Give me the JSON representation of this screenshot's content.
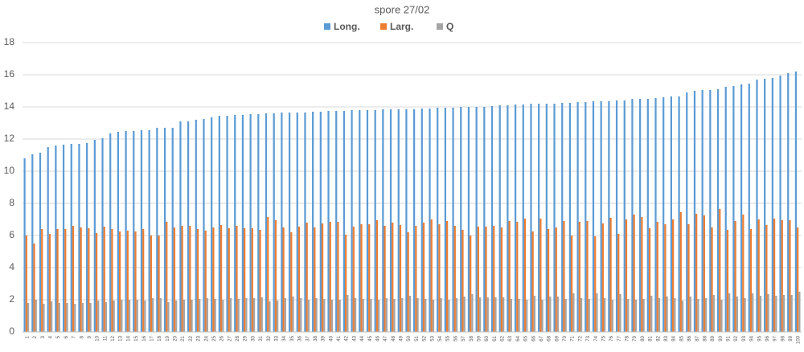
{
  "chart_data": {
    "type": "bar",
    "title": "spore 27/02",
    "categories": [
      "1",
      "2",
      "3",
      "4",
      "5",
      "6",
      "7",
      "8",
      "9",
      "10",
      "11",
      "12",
      "13",
      "14",
      "15",
      "16",
      "17",
      "18",
      "19",
      "20",
      "21",
      "22",
      "23",
      "24",
      "25",
      "26",
      "27",
      "28",
      "29",
      "30",
      "31",
      "32",
      "33",
      "34",
      "35",
      "36",
      "37",
      "38",
      "39",
      "40",
      "41",
      "42",
      "43",
      "44",
      "45",
      "46",
      "47",
      "48",
      "49",
      "50",
      "51",
      "52",
      "53",
      "54",
      "55",
      "56",
      "57",
      "58",
      "59",
      "60",
      "61",
      "62",
      "63",
      "64",
      "65",
      "66",
      "67",
      "68",
      "69",
      "70",
      "71",
      "72",
      "73",
      "74",
      "75",
      "76",
      "77",
      "78",
      "79",
      "80",
      "81",
      "82",
      "83",
      "84",
      "85",
      "86",
      "87",
      "88",
      "89",
      "90",
      "91",
      "92",
      "93",
      "94",
      "95",
      "96",
      "97",
      "98",
      "99",
      "100"
    ],
    "series": [
      {
        "name": "Long.",
        "color": "#5b9bd5",
        "values": [
          10.8,
          11.05,
          11.15,
          11.5,
          11.6,
          11.65,
          11.7,
          11.7,
          11.75,
          11.95,
          12.05,
          12.35,
          12.45,
          12.5,
          12.5,
          12.55,
          12.55,
          12.7,
          12.7,
          12.7,
          13.1,
          13.1,
          13.2,
          13.25,
          13.35,
          13.45,
          13.45,
          13.5,
          13.5,
          13.55,
          13.55,
          13.6,
          13.6,
          13.65,
          13.65,
          13.65,
          13.65,
          13.7,
          13.7,
          13.75,
          13.75,
          13.75,
          13.8,
          13.8,
          13.8,
          13.8,
          13.85,
          13.85,
          13.85,
          13.85,
          13.85,
          13.9,
          13.9,
          13.95,
          13.95,
          13.95,
          14,
          14,
          14,
          14,
          14.05,
          14.1,
          14.1,
          14.15,
          14.15,
          14.2,
          14.2,
          14.2,
          14.2,
          14.25,
          14.25,
          14.3,
          14.3,
          14.35,
          14.35,
          14.35,
          14.4,
          14.4,
          14.5,
          14.5,
          14.5,
          14.55,
          14.6,
          14.65,
          14.65,
          14.9,
          15,
          15.05,
          15.05,
          15.1,
          15.25,
          15.3,
          15.4,
          15.45,
          15.7,
          15.75,
          15.8,
          15.95,
          16.1,
          16.2
        ]
      },
      {
        "name": "Larg.",
        "color": "#ed7d31",
        "values": [
          6.0,
          5.5,
          6.4,
          6.1,
          6.4,
          6.4,
          6.6,
          6.5,
          6.45,
          6.15,
          6.55,
          6.4,
          6.25,
          6.3,
          6.25,
          6.4,
          6.0,
          6.0,
          6.85,
          6.5,
          6.6,
          6.6,
          6.4,
          6.3,
          6.5,
          6.65,
          6.45,
          6.6,
          6.45,
          6.45,
          6.35,
          7.15,
          6.95,
          6.5,
          6.2,
          6.55,
          6.8,
          6.5,
          6.75,
          6.85,
          6.85,
          6.05,
          6.55,
          6.7,
          6.7,
          6.95,
          6.6,
          6.8,
          6.65,
          6.2,
          6.6,
          6.8,
          7.0,
          6.7,
          6.9,
          6.6,
          6.35,
          6.0,
          6.55,
          6.55,
          6.6,
          6.5,
          6.9,
          6.85,
          7.05,
          6.25,
          7.05,
          6.4,
          6.5,
          6.9,
          6.0,
          6.85,
          6.9,
          5.95,
          6.75,
          7.1,
          6.1,
          7.0,
          7.3,
          7.15,
          6.45,
          6.85,
          6.7,
          7.0,
          7.45,
          6.7,
          7.35,
          7.25,
          6.5,
          7.65,
          6.35,
          6.9,
          7.3,
          6.4,
          7.0,
          6.65,
          7.05,
          6.95,
          6.95,
          6.5
        ]
      },
      {
        "name": "Q",
        "color": "#a5a5a5",
        "values": [
          1.8,
          2.0,
          1.75,
          1.9,
          1.8,
          1.8,
          1.75,
          1.8,
          1.8,
          1.95,
          1.85,
          1.95,
          2.0,
          2.0,
          2.0,
          1.95,
          2.1,
          2.1,
          1.85,
          1.95,
          2.0,
          2.0,
          2.05,
          2.1,
          2.05,
          2.0,
          2.1,
          2.05,
          2.1,
          2.1,
          2.15,
          1.9,
          1.95,
          2.1,
          2.2,
          2.1,
          2.0,
          2.1,
          2.05,
          2.0,
          2.0,
          2.3,
          2.1,
          2.05,
          2.05,
          2.0,
          2.1,
          2.05,
          2.1,
          2.25,
          2.1,
          2.05,
          2.0,
          2.1,
          2.0,
          2.1,
          2.2,
          2.35,
          2.15,
          2.15,
          2.15,
          2.15,
          2.05,
          2.05,
          2.0,
          2.25,
          2.0,
          2.2,
          2.2,
          2.05,
          2.4,
          2.1,
          2.05,
          2.4,
          2.1,
          2.0,
          2.35,
          2.05,
          2.0,
          2.05,
          2.25,
          2.1,
          2.2,
          2.1,
          1.95,
          2.2,
          2.05,
          2.1,
          2.3,
          2.0,
          2.4,
          2.2,
          2.1,
          2.4,
          2.25,
          2.35,
          2.25,
          2.3,
          2.3,
          2.5
        ]
      }
    ],
    "ylim": [
      0,
      18
    ],
    "yticks": [
      0,
      2,
      4,
      6,
      8,
      10,
      12,
      14,
      16,
      18
    ],
    "grid": true
  }
}
